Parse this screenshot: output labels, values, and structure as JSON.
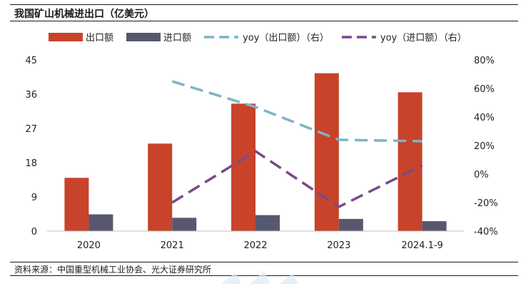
{
  "title": "我国矿山机械进出口（亿美元）",
  "source": "资料来源：中国重型机械工业协会、光大证券研究所",
  "chart_data": {
    "type": "bar",
    "categories": [
      "2020",
      "2021",
      "2022",
      "2023",
      "2024.1-9"
    ],
    "series": [
      {
        "name": "出口额",
        "kind": "bar",
        "axis": "left",
        "color": "#c8432a",
        "values": [
          14,
          23,
          33.5,
          41.5,
          36.5
        ]
      },
      {
        "name": "进口额",
        "kind": "bar",
        "axis": "left",
        "color": "#575870",
        "values": [
          4.4,
          3.5,
          4.2,
          3.2,
          2.6
        ]
      },
      {
        "name": "yoy（出口额）（右）",
        "kind": "line",
        "style": "dashed",
        "axis": "right",
        "color": "#7fb3c6",
        "values": [
          null,
          65,
          47,
          24,
          23
        ]
      },
      {
        "name": "yoy（进口额）（右）",
        "kind": "line",
        "style": "dashed",
        "axis": "right",
        "color": "#7a4a88",
        "values": [
          null,
          -20,
          16,
          -23,
          6
        ]
      }
    ],
    "y_left": {
      "min": 0,
      "max": 45,
      "ticks": [
        0,
        9,
        18,
        27,
        36,
        45
      ]
    },
    "y_right": {
      "min": -40,
      "max": 80,
      "ticks": [
        -40,
        -20,
        0,
        20,
        40,
        60,
        80
      ],
      "unit": "%"
    },
    "legend_position": "top",
    "grid": false
  }
}
